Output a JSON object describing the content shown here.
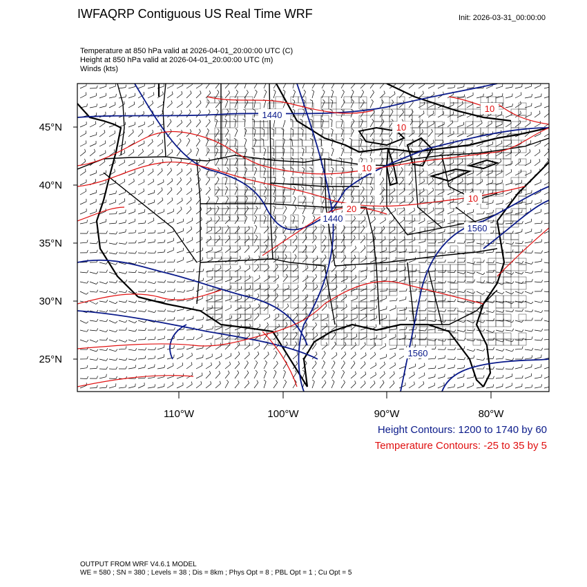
{
  "header": {
    "title": "IWFAQRP Contiguous US Real Time WRF",
    "init": "Init: 2026-03-31_00:00:00"
  },
  "fields": {
    "temperature": "Temperature at 850 hPa valid at 2026-04-01_20:00:00 UTC   (C)",
    "height": "Height at 850 hPa valid at 2026-04-01_20:00:00 UTC   (m)",
    "winds": "Winds   (kts)"
  },
  "map": {
    "lat_ticks": [
      "45°N",
      "40°N",
      "35°N",
      "30°N",
      "25°N"
    ],
    "lon_ticks": [
      "110°W",
      "100°W",
      "90°W",
      "80°W"
    ],
    "height_labels": [
      "1440",
      "1440",
      "1560",
      "1560"
    ],
    "temp_labels": [
      "10",
      "10",
      "10",
      "10",
      "20"
    ],
    "colors": {
      "height": "#0a1a8a",
      "temperature": "#e01010",
      "boundaries": "#000000",
      "winds": "#000000"
    }
  },
  "legend": {
    "height": "Height Contours: 1200 to 1740 by 60",
    "temperature": "Temperature Contours: -25 to 35 by 5"
  },
  "footer": {
    "line1": "OUTPUT FROM WRF V4.6.1 MODEL",
    "line2": "WE = 580 ; SN = 380 ; Levels = 38 ; Dis = 8km ; Phys Opt = 8 ; PBL Opt = 1 ; Cu Opt = 5"
  }
}
